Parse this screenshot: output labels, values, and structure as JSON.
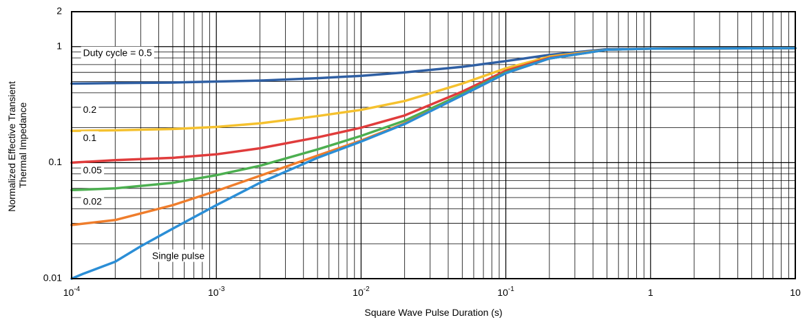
{
  "chart_data": {
    "type": "line",
    "xlabel": "Square Wave Pulse Duration (s)",
    "ylabel_lines": [
      "Normalized Effective Transient",
      "Thermal Impedance"
    ],
    "xscale": "log",
    "yscale": "log",
    "xlim": [
      0.0001,
      10
    ],
    "ylim": [
      0.01,
      2
    ],
    "grid": true,
    "x_ticks": [
      {
        "value": 0.0001,
        "base": "10",
        "exp": "-4"
      },
      {
        "value": 0.001,
        "base": "10",
        "exp": "-3"
      },
      {
        "value": 0.01,
        "base": "10",
        "exp": "-2"
      },
      {
        "value": 0.1,
        "base": "10",
        "exp": "-1"
      },
      {
        "value": 1,
        "base": "1",
        "exp": ""
      },
      {
        "value": 10,
        "base": "10",
        "exp": ""
      }
    ],
    "y_ticks": [
      {
        "value": 0.01,
        "label": "0.01"
      },
      {
        "value": 0.1,
        "label": "0.1"
      },
      {
        "value": 1,
        "label": "1"
      },
      {
        "value": 2,
        "label": "2"
      }
    ],
    "series": [
      {
        "name": "Duty cycle = 0.5",
        "color": "#2f5fa3",
        "label_pos": {
          "x": 0.00012,
          "y": 0.87
        },
        "x": [
          0.0001,
          0.0002,
          0.0005,
          0.001,
          0.002,
          0.005,
          0.01,
          0.02,
          0.05,
          0.1,
          0.2,
          0.5,
          1,
          10
        ],
        "y": [
          0.48,
          0.485,
          0.49,
          0.5,
          0.51,
          0.535,
          0.56,
          0.6,
          0.67,
          0.75,
          0.85,
          0.95,
          0.96,
          0.97
        ]
      },
      {
        "name": "0.2",
        "color": "#f5c12e",
        "label_pos": {
          "x": 0.00012,
          "y": 0.282
        },
        "x": [
          0.0001,
          0.0002,
          0.0005,
          0.001,
          0.002,
          0.005,
          0.01,
          0.02,
          0.05,
          0.1,
          0.2,
          0.5,
          1,
          10
        ],
        "y": [
          0.188,
          0.19,
          0.195,
          0.203,
          0.218,
          0.252,
          0.285,
          0.34,
          0.48,
          0.65,
          0.82,
          0.94,
          0.96,
          0.97
        ]
      },
      {
        "name": "0.1",
        "color": "#e03c3c",
        "label_pos": {
          "x": 0.00012,
          "y": 0.162
        },
        "x": [
          0.0001,
          0.0002,
          0.0005,
          0.001,
          0.002,
          0.005,
          0.01,
          0.02,
          0.05,
          0.1,
          0.2,
          0.5,
          1,
          10
        ],
        "y": [
          0.1,
          0.105,
          0.11,
          0.118,
          0.133,
          0.165,
          0.2,
          0.255,
          0.41,
          0.62,
          0.8,
          0.94,
          0.96,
          0.97
        ]
      },
      {
        "name": "0.05",
        "color": "#4caf50",
        "label_pos": {
          "x": 0.00012,
          "y": 0.085
        },
        "x": [
          0.0001,
          0.0002,
          0.0005,
          0.001,
          0.002,
          0.005,
          0.01,
          0.02,
          0.05,
          0.1,
          0.2,
          0.5,
          1,
          10
        ],
        "y": [
          0.058,
          0.06,
          0.067,
          0.078,
          0.094,
          0.13,
          0.17,
          0.23,
          0.39,
          0.6,
          0.79,
          0.94,
          0.96,
          0.97
        ]
      },
      {
        "name": "0.02",
        "color": "#ef7d2c",
        "label_pos": {
          "x": 0.00012,
          "y": 0.0455
        },
        "x": [
          0.0001,
          0.0002,
          0.0005,
          0.001,
          0.002,
          0.005,
          0.01,
          0.02,
          0.05,
          0.1,
          0.2,
          0.5,
          1,
          10
        ],
        "y": [
          0.029,
          0.032,
          0.043,
          0.057,
          0.077,
          0.115,
          0.155,
          0.218,
          0.38,
          0.59,
          0.79,
          0.94,
          0.96,
          0.97
        ]
      },
      {
        "name": "Single pulse",
        "color": "#2b8ed6",
        "label_pos": {
          "x": 0.00036,
          "y": 0.0155
        },
        "x": [
          0.0001,
          0.00012,
          0.0002,
          0.0003,
          0.0005,
          0.001,
          0.002,
          0.005,
          0.01,
          0.02,
          0.05,
          0.1,
          0.2,
          0.5,
          1,
          10
        ],
        "y": [
          0.01,
          0.011,
          0.014,
          0.019,
          0.027,
          0.043,
          0.067,
          0.11,
          0.152,
          0.215,
          0.38,
          0.59,
          0.79,
          0.94,
          0.96,
          0.97
        ]
      }
    ]
  }
}
